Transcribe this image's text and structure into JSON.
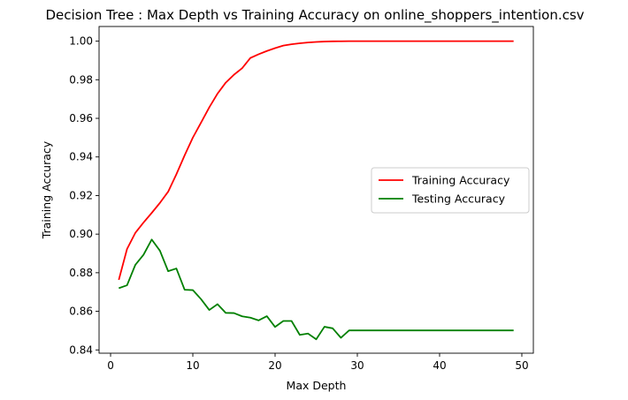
{
  "chart_data": {
    "type": "line",
    "title": "Decision Tree : Max Depth vs Training Accuracy on online_shoppers_intention.csv",
    "xlabel": "Max Depth",
    "ylabel": "Training Accuracy",
    "xlim": [
      -1.4,
      51.4
    ],
    "ylim": [
      0.8383,
      1.0076
    ],
    "xticks": [
      0,
      10,
      20,
      30,
      40,
      50
    ],
    "yticks": [
      0.84,
      0.86,
      0.88,
      0.9,
      0.92,
      0.94,
      0.96,
      0.98,
      1.0
    ],
    "ytick_labels": [
      "0.84",
      "0.86",
      "0.88",
      "0.90",
      "0.92",
      "0.94",
      "0.96",
      "0.98",
      "1.00"
    ],
    "grid": false,
    "legend_position": "center-right",
    "x": [
      1,
      2,
      3,
      4,
      5,
      6,
      7,
      8,
      9,
      10,
      11,
      12,
      13,
      14,
      15,
      16,
      17,
      18,
      19,
      20,
      21,
      22,
      23,
      24,
      25,
      26,
      27,
      28,
      29,
      30,
      31,
      32,
      33,
      34,
      35,
      36,
      37,
      38,
      39,
      40,
      41,
      42,
      43,
      44,
      45,
      46,
      47,
      48,
      49
    ],
    "series": [
      {
        "name": "Training Accuracy",
        "color": "#ff0000",
        "values": [
          0.8763,
          0.8923,
          0.9006,
          0.906,
          0.911,
          0.9162,
          0.922,
          0.931,
          0.9408,
          0.95,
          0.9578,
          0.9657,
          0.9728,
          0.9785,
          0.9826,
          0.986,
          0.9913,
          0.9932,
          0.9949,
          0.9964,
          0.9977,
          0.9984,
          0.9989,
          0.9993,
          0.9996,
          0.9998,
          0.9999,
          0.99995,
          1.0,
          1.0,
          1.0,
          1.0,
          1.0,
          1.0,
          1.0,
          1.0,
          1.0,
          1.0,
          1.0,
          1.0,
          1.0,
          1.0,
          1.0,
          1.0,
          1.0,
          1.0,
          1.0,
          1.0,
          1.0
        ]
      },
      {
        "name": "Testing Accuracy",
        "color": "#008000",
        "values": [
          0.872,
          0.8735,
          0.884,
          0.8893,
          0.8972,
          0.8914,
          0.8808,
          0.8822,
          0.8712,
          0.871,
          0.8663,
          0.8607,
          0.8637,
          0.8592,
          0.8591,
          0.8574,
          0.8567,
          0.8553,
          0.8575,
          0.8519,
          0.855,
          0.855,
          0.8478,
          0.8485,
          0.8455,
          0.852,
          0.8512,
          0.8463,
          0.8501,
          0.8501,
          0.8501,
          0.8501,
          0.8501,
          0.8501,
          0.8501,
          0.8501,
          0.8501,
          0.8501,
          0.8501,
          0.8501,
          0.8501,
          0.8501,
          0.8501,
          0.8501,
          0.8501,
          0.8501,
          0.8501,
          0.8501,
          0.8501
        ]
      }
    ]
  }
}
